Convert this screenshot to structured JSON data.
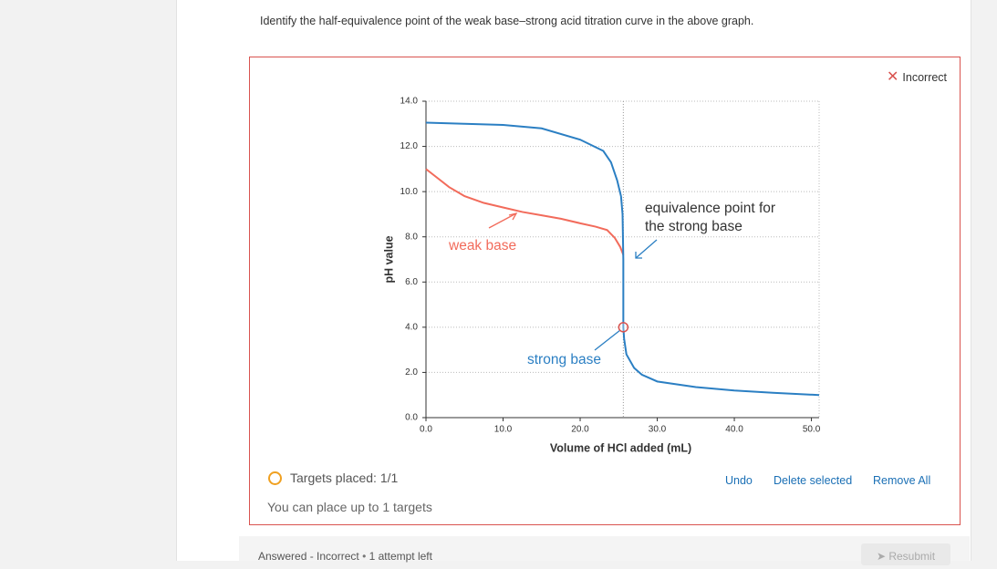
{
  "question": "Identify the half-equivalence point of the weak base–strong acid titration curve in the above graph.",
  "status": "Incorrect",
  "chart_data": {
    "type": "line",
    "xlabel": "Volume of HCl added (mL)",
    "ylabel": "pH value",
    "xlim": [
      0,
      51
    ],
    "ylim": [
      0,
      14
    ],
    "xticks": [
      {
        "value": 0,
        "label": "0.0"
      },
      {
        "value": 10,
        "label": "10.0"
      },
      {
        "value": 20,
        "label": "20.0"
      },
      {
        "value": 30,
        "label": "30.0"
      },
      {
        "value": 40,
        "label": "40.0"
      },
      {
        "value": 50,
        "label": "50.0"
      }
    ],
    "yticks": [
      {
        "value": 0,
        "label": "0.0"
      },
      {
        "value": 2,
        "label": "2.0"
      },
      {
        "value": 4,
        "label": "4.0"
      },
      {
        "value": 6,
        "label": "6.0"
      },
      {
        "value": 8,
        "label": "8.0"
      },
      {
        "value": 10,
        "label": "10.0"
      },
      {
        "value": 12,
        "label": "12.0"
      },
      {
        "value": 14,
        "label": "14.0"
      }
    ],
    "grid": true,
    "equivalence_volume": 25.6,
    "series": [
      {
        "name": "strong base",
        "color": "#2b7fc3",
        "x": [
          0,
          5,
          10,
          15,
          20,
          23,
          24,
          24.8,
          25.3,
          25.5,
          25.6,
          25.6,
          25.7,
          26,
          27,
          28,
          30,
          35,
          40,
          45,
          51
        ],
        "values": [
          13.05,
          13.0,
          12.95,
          12.8,
          12.3,
          11.8,
          11.3,
          10.5,
          9.8,
          9.0,
          7.0,
          4.0,
          3.5,
          2.8,
          2.2,
          1.9,
          1.6,
          1.35,
          1.2,
          1.1,
          1.0
        ]
      },
      {
        "name": "weak base",
        "color": "#f26b5b",
        "x": [
          0,
          1.5,
          3,
          5,
          7.5,
          10,
          12.5,
          15,
          17.5,
          20,
          22,
          23.5,
          24.5,
          25.2,
          25.6
        ],
        "values": [
          11.0,
          10.6,
          10.2,
          9.8,
          9.5,
          9.3,
          9.1,
          8.95,
          8.8,
          8.6,
          8.45,
          8.3,
          7.95,
          7.55,
          7.2
        ]
      }
    ],
    "annotations": [
      "weak base",
      "strong base",
      "equivalence point for the strong base"
    ],
    "target": {
      "x": 25.6,
      "y": 4.0
    }
  },
  "targets_placed": "Targets placed: 1/1",
  "hint": "You can place up to 1 targets",
  "buttons": [
    "Undo",
    "Delete selected",
    "Remove All"
  ],
  "footer": {
    "status": "Answered - Incorrect",
    "attempts": "1 attempt left",
    "submit": "Resubmit"
  }
}
